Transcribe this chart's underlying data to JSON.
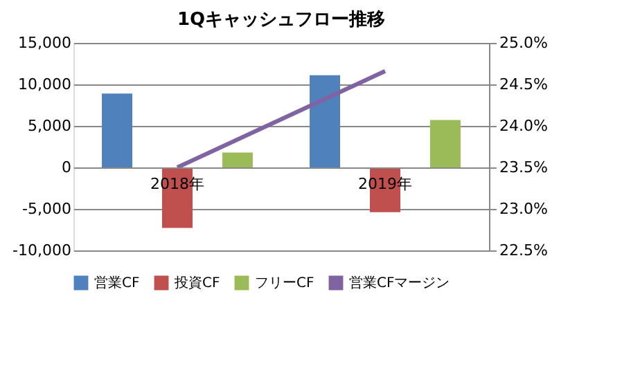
{
  "chart_data": {
    "type": "bar",
    "title": "1Qキャッシュフロー推移",
    "categories": [
      "2018年",
      "2019年"
    ],
    "series": [
      {
        "name": "営業CF",
        "color": "#4f81bd",
        "values": [
          8900,
          11100
        ]
      },
      {
        "name": "投資CF",
        "color": "#c0504d",
        "values": [
          -7300,
          -5400
        ]
      },
      {
        "name": "フリーCF",
        "color": "#9bbb59",
        "values": [
          1800,
          5700
        ]
      },
      {
        "name": "営業CFマージン",
        "color": "#8064a2",
        "type": "line",
        "axis": "y2",
        "values": [
          23.5,
          24.66
        ]
      }
    ],
    "ylim": [
      -10000,
      15000
    ],
    "yticks": [
      {
        "value": -10000,
        "label": "-10,000"
      },
      {
        "value": -5000,
        "label": "-5,000"
      },
      0,
      {
        "value": 5000,
        "label": "5,000"
      },
      {
        "value": 10000,
        "label": "10,000"
      },
      {
        "value": 15000,
        "label": "15,000"
      }
    ],
    "y2lim": [
      22.5,
      25.0
    ],
    "y2ticks": [
      {
        "value": 22.5,
        "label": "22.5%"
      },
      {
        "value": 23.0,
        "label": "23.0%"
      },
      {
        "value": 23.5,
        "label": "23.5%"
      },
      {
        "value": 24.0,
        "label": "24.0%"
      },
      {
        "value": 24.5,
        "label": "24.5%"
      },
      {
        "value": 25.0,
        "label": "25.0%"
      }
    ],
    "grid": "y",
    "legend": "bottom",
    "marker": "none"
  }
}
